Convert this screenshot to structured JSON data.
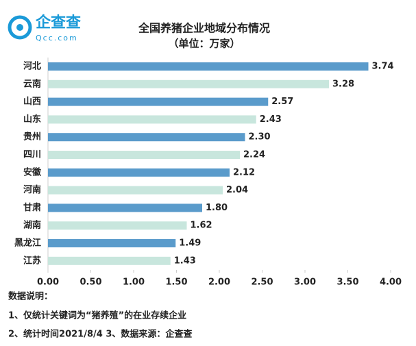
{
  "logo": {
    "name": "企查查",
    "site": "Qcc.com"
  },
  "chart_data": {
    "type": "hbar",
    "title": "全国养猪企业地域分布情况",
    "subtitle": "（单位：万家）",
    "categories": [
      "河北",
      "云南",
      "山西",
      "山东",
      "贵州",
      "四川",
      "安徽",
      "河南",
      "甘肃",
      "湖南",
      "黑龙江",
      "江苏"
    ],
    "values": [
      3.74,
      3.28,
      2.57,
      2.43,
      2.3,
      2.24,
      2.12,
      2.04,
      1.8,
      1.62,
      1.49,
      1.43
    ],
    "value_labels": [
      "3.74",
      "3.28",
      "2.57",
      "2.43",
      "2.30",
      "2.24",
      "2.12",
      "2.04",
      "1.80",
      "1.62",
      "1.49",
      "1.43"
    ],
    "colors": [
      "#5a9bcb",
      "#c8e6dd"
    ],
    "xlim": [
      0,
      4
    ],
    "xticks": [
      {
        "value": 0,
        "label": "0.00"
      },
      {
        "value": 0.5,
        "label": "0.50"
      },
      {
        "value": 1,
        "label": "1.00"
      },
      {
        "value": 1.5,
        "label": "1.50"
      },
      {
        "value": 2,
        "label": "2.00"
      },
      {
        "value": 2.5,
        "label": "2.50"
      },
      {
        "value": 3,
        "label": "3.00"
      },
      {
        "value": 3.5,
        "label": "3.50"
      },
      {
        "value": 4,
        "label": "4.00"
      }
    ]
  },
  "notes": [
    "数据说明：",
    "1、仅统计关键词为“猪养殖”的在业存续企业",
    "2、统计时间2021/8/4    3、数据来源：企查查"
  ]
}
